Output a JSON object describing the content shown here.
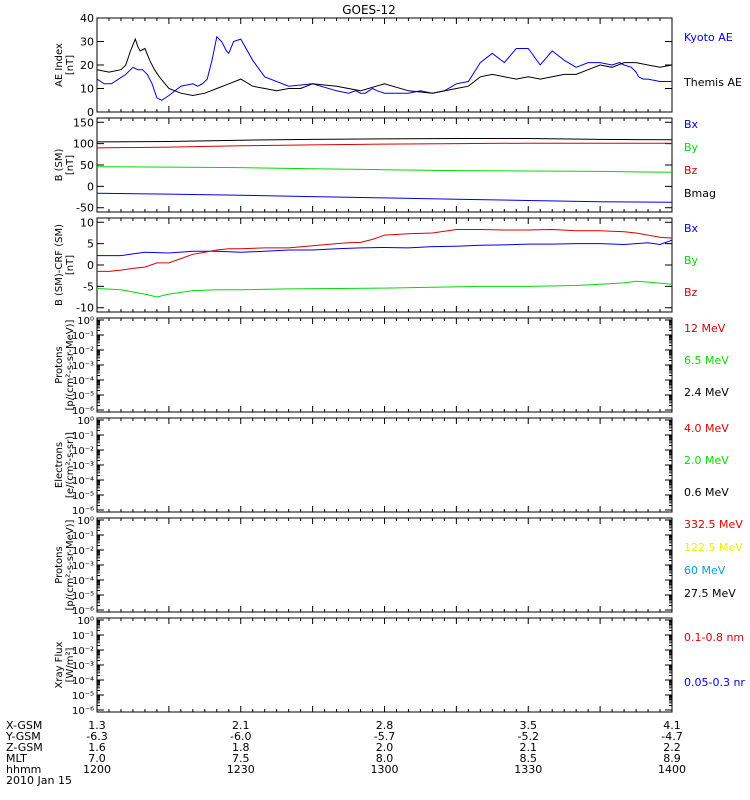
{
  "title": "GOES-12",
  "colors": {
    "black": "#000000",
    "blue": "#0000ee",
    "red": "#dd0000",
    "green": "#00dd00",
    "yellow": "#eeee00",
    "cyan": "#00a0e0"
  },
  "chart_data": [
    {
      "type": "line",
      "ylabel": [
        "AE Index",
        "[nT]"
      ],
      "ylim": [
        0,
        40
      ],
      "yticks": [
        "0",
        "10",
        "20",
        "30",
        "40"
      ],
      "legend": [
        {
          "label": "Kyoto AE",
          "color": "blue"
        },
        {
          "label": "Themis AE",
          "color": "black"
        }
      ],
      "series": [
        {
          "name": "Kyoto AE",
          "color": "blue",
          "x": [
            0,
            3,
            6,
            9,
            12,
            15,
            17,
            19,
            21,
            23,
            25,
            27,
            30,
            35,
            40,
            42,
            44,
            46,
            48,
            50,
            52,
            54,
            55,
            57,
            60,
            65,
            70,
            80,
            90,
            100,
            105,
            108,
            110,
            112,
            115,
            117,
            120,
            125,
            130,
            135,
            140,
            145,
            150,
            155,
            160,
            165,
            170,
            175,
            180,
            185,
            190,
            195,
            200,
            205,
            210,
            215,
            218,
            220,
            223,
            225,
            226,
            228,
            230,
            235,
            240
          ],
          "y": [
            14,
            12,
            12,
            14,
            16,
            19,
            18,
            18,
            16,
            12,
            6,
            5,
            7,
            11,
            12,
            11,
            12,
            14,
            22,
            32,
            30,
            26,
            25,
            30,
            31,
            22,
            15,
            11,
            12,
            9,
            8,
            9,
            8,
            8,
            10,
            9,
            8,
            8,
            8,
            9,
            8,
            9,
            12,
            13,
            21,
            25,
            21,
            27,
            27,
            20,
            26,
            22,
            19,
            21,
            21,
            20,
            21,
            20,
            19,
            17,
            15,
            14,
            14,
            13,
            13
          ]
        },
        {
          "name": "Themis AE",
          "color": "black",
          "x": [
            0,
            5,
            10,
            12,
            14,
            16,
            17,
            18,
            20,
            22,
            24,
            26,
            30,
            35,
            40,
            45,
            50,
            55,
            60,
            65,
            70,
            75,
            80,
            85,
            90,
            100,
            110,
            120,
            130,
            140,
            150,
            155,
            160,
            165,
            170,
            175,
            180,
            185,
            190,
            195,
            200,
            205,
            210,
            215,
            220,
            225,
            230,
            235,
            240
          ],
          "y": [
            18,
            17,
            18,
            20,
            26,
            31,
            28,
            26,
            27,
            22,
            18,
            15,
            10,
            8,
            7,
            8,
            10,
            12,
            14,
            11,
            10,
            9,
            10,
            10,
            12,
            11,
            9,
            12,
            9,
            8,
            10,
            11,
            15,
            16,
            15,
            14,
            15,
            14,
            15,
            16,
            16,
            18,
            20,
            19,
            21,
            21,
            20,
            19,
            20
          ]
        }
      ]
    },
    {
      "type": "line",
      "ylabel": [
        "B (SM)",
        "[nT]"
      ],
      "ylim": [
        -60,
        160
      ],
      "yticks": [
        "-50",
        "0",
        "50",
        "100",
        "150"
      ],
      "legend": [
        {
          "label": "Bx",
          "color": "blue"
        },
        {
          "label": "By",
          "color": "green"
        },
        {
          "label": "Bz",
          "color": "red"
        },
        {
          "label": "Bmag",
          "color": "black"
        }
      ],
      "series": [
        {
          "name": "Bmag",
          "color": "black",
          "x": [
            0,
            30,
            60,
            90,
            120,
            150,
            180,
            210,
            240
          ],
          "y": [
            104,
            105,
            108,
            110,
            111,
            112,
            112,
            110,
            109
          ]
        },
        {
          "name": "Bz",
          "color": "red",
          "x": [
            0,
            30,
            60,
            90,
            120,
            150,
            180,
            210,
            240
          ],
          "y": [
            90,
            92,
            95,
            97,
            99,
            100,
            101,
            101,
            101
          ]
        },
        {
          "name": "By",
          "color": "green",
          "x": [
            0,
            30,
            60,
            90,
            120,
            150,
            180,
            210,
            240
          ],
          "y": [
            46,
            45,
            44,
            41,
            39,
            37,
            36,
            35,
            33
          ]
        },
        {
          "name": "Bx",
          "color": "blue",
          "x": [
            0,
            30,
            60,
            90,
            120,
            150,
            180,
            210,
            240
          ],
          "y": [
            -16,
            -18,
            -21,
            -24,
            -27,
            -30,
            -33,
            -36,
            -37
          ]
        }
      ]
    },
    {
      "type": "line",
      "ylabel": [
        "B (SM)-CRF (SM)",
        "[nT]"
      ],
      "ylim": [
        -11,
        11
      ],
      "yticks": [
        "-10",
        "-5",
        "0",
        "5",
        "10"
      ],
      "legend": [
        {
          "label": "Bx",
          "color": "blue"
        },
        {
          "label": "By",
          "color": "green"
        },
        {
          "label": "Bz",
          "color": "red"
        }
      ],
      "series": [
        {
          "name": "Bx",
          "color": "blue",
          "x": [
            0,
            10,
            15,
            20,
            30,
            40,
            50,
            60,
            70,
            80,
            90,
            100,
            110,
            120,
            130,
            140,
            150,
            160,
            170,
            180,
            190,
            200,
            210,
            220,
            230,
            235,
            240
          ],
          "y": [
            2.2,
            2.2,
            2.6,
            3.0,
            2.8,
            3.2,
            3.2,
            3.0,
            3.2,
            3.5,
            3.5,
            3.8,
            4.0,
            4.1,
            4.0,
            4.3,
            4.4,
            4.6,
            4.7,
            4.9,
            4.9,
            5.0,
            5.0,
            4.8,
            5.2,
            4.8,
            5.8
          ]
        },
        {
          "name": "By",
          "color": "green",
          "x": [
            0,
            10,
            20,
            25,
            30,
            40,
            50,
            60,
            80,
            100,
            120,
            140,
            160,
            180,
            200,
            210,
            220,
            225,
            230,
            240
          ],
          "y": [
            -5.5,
            -5.8,
            -6.8,
            -7.5,
            -6.8,
            -6.0,
            -5.8,
            -5.8,
            -5.6,
            -5.5,
            -5.4,
            -5.2,
            -5.0,
            -5.0,
            -4.8,
            -4.5,
            -4.2,
            -3.8,
            -4.0,
            -4.5
          ]
        },
        {
          "name": "Bz",
          "color": "red",
          "x": [
            0,
            5,
            10,
            15,
            20,
            25,
            30,
            35,
            40,
            45,
            50,
            55,
            60,
            70,
            80,
            90,
            100,
            105,
            110,
            115,
            120,
            130,
            140,
            150,
            160,
            170,
            180,
            190,
            200,
            210,
            220,
            225,
            230,
            235,
            240
          ],
          "y": [
            -1.5,
            -1.5,
            -1.2,
            -0.8,
            -0.5,
            0.5,
            0.5,
            1.5,
            2.5,
            3.0,
            3.5,
            3.8,
            3.8,
            4.0,
            4.0,
            4.5,
            5.0,
            5.2,
            5.3,
            6.0,
            7.0,
            7.3,
            7.5,
            8.3,
            8.3,
            8.2,
            8.2,
            8.3,
            8.0,
            8.0,
            7.8,
            7.5,
            7.0,
            6.5,
            6.3
          ]
        }
      ]
    },
    {
      "type": "line",
      "ylabel": [
        "Protons",
        "[p/(cm²-s-sr-MeV)]"
      ],
      "scale": "log",
      "yticks": [
        "10⁰",
        "10⁻¹",
        "10⁻²",
        "10⁻³",
        "10⁻⁴",
        "10⁻⁵",
        "10⁻⁶"
      ],
      "legend": [
        {
          "label": "12 MeV",
          "color": "red"
        },
        {
          "label": "6.5 MeV",
          "color": "green"
        },
        {
          "label": "2.4 MeV",
          "color": "black"
        }
      ],
      "series": []
    },
    {
      "type": "line",
      "ylabel": [
        "Electrons",
        "[e/(cm²-s-sr)]"
      ],
      "scale": "log",
      "yticks": [
        "10⁰",
        "10⁻¹",
        "10⁻²",
        "10⁻³",
        "10⁻⁴",
        "10⁻⁵",
        "10⁻⁶"
      ],
      "legend": [
        {
          "label": "4.0 MeV",
          "color": "red"
        },
        {
          "label": "2.0 MeV",
          "color": "green"
        },
        {
          "label": "0.6 MeV",
          "color": "black"
        }
      ],
      "series": []
    },
    {
      "type": "line",
      "ylabel": [
        "Protons",
        "[p/(cm²-s-sr-MeV)]"
      ],
      "scale": "log",
      "yticks": [
        "10⁰",
        "10⁻¹",
        "10⁻²",
        "10⁻³",
        "10⁻⁴",
        "10⁻⁵",
        "10⁻⁶"
      ],
      "legend": [
        {
          "label": "332.5 MeV",
          "color": "red"
        },
        {
          "label": "122.5 MeV",
          "color": "yellow"
        },
        {
          "label": "60 MeV",
          "color": "cyan"
        },
        {
          "label": "27.5 MeV",
          "color": "black"
        }
      ],
      "series": []
    },
    {
      "type": "line",
      "ylabel": [
        "Xray Flux",
        "[W/m²]"
      ],
      "scale": "log",
      "yticks": [
        "10⁰",
        "10⁻¹",
        "10⁻²",
        "10⁻³",
        "10⁻⁴",
        "10⁻⁵",
        "10⁻⁶"
      ],
      "legend": [
        {
          "label": "0.1-0.8 nm",
          "color": "red"
        },
        {
          "label": "0.05-0.3 nr",
          "color": "blue"
        }
      ],
      "series": []
    }
  ],
  "xaxis": {
    "range": [
      0,
      240
    ],
    "rows": [
      {
        "label": "X-GSM",
        "values": [
          "1.3",
          "2.1",
          "2.8",
          "3.5",
          "4.1"
        ]
      },
      {
        "label": "Y-GSM",
        "values": [
          "-6.3",
          "-6.0",
          "-5.7",
          "-5.2",
          "-4.7"
        ]
      },
      {
        "label": "Z-GSM",
        "values": [
          "1.6",
          "1.8",
          "2.0",
          "2.1",
          "2.2"
        ]
      },
      {
        "label": "MLT",
        "values": [
          "7.0",
          "7.5",
          "8.0",
          "8.5",
          "8.9"
        ]
      },
      {
        "label": "hhmm",
        "values": [
          "1200",
          "1230",
          "1300",
          "1330",
          "1400"
        ]
      }
    ],
    "date": "2010 Jan 15"
  }
}
